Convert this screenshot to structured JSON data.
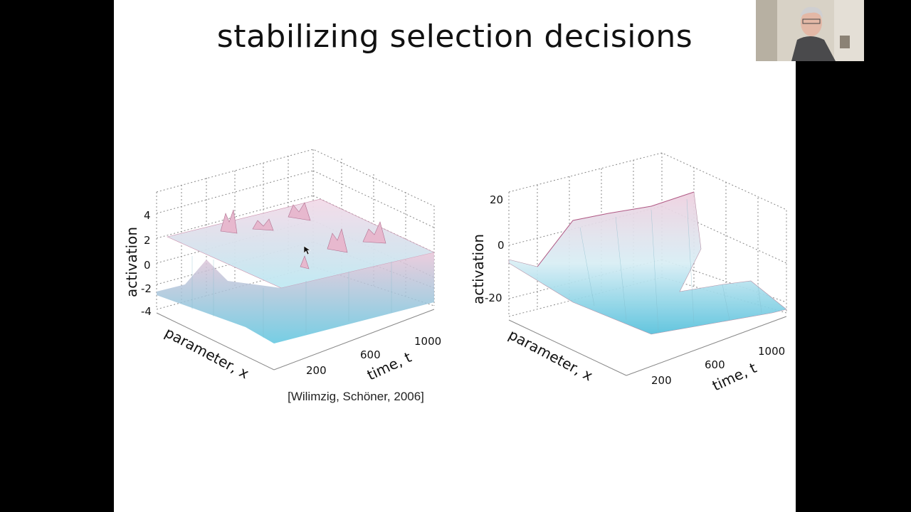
{
  "slide": {
    "title": "stabilizing selection decisions",
    "citation": "[Wilimzig, Schöner, 2006]"
  },
  "chart_data": [
    {
      "type": "surface",
      "zlabel": "activation",
      "xlabel": "parameter, x",
      "ylabel": "time, t",
      "z_ticks": [
        "4",
        "2",
        "0",
        "-2",
        "-4"
      ],
      "t_ticks": [
        "200",
        "600",
        "1000"
      ]
    },
    {
      "type": "surface",
      "zlabel": "activation",
      "xlabel": "parameter, x",
      "ylabel": "time, t",
      "z_ticks": [
        "20",
        "0",
        "-20"
      ],
      "t_ticks": [
        "200",
        "600",
        "1000"
      ]
    }
  ],
  "webcam": {
    "icon": "presenter-video-thumbnail"
  },
  "colors": {
    "surface_high": "#d9a6c2",
    "surface_low": "#6ccbe0",
    "grid": "#9a9a9a"
  }
}
